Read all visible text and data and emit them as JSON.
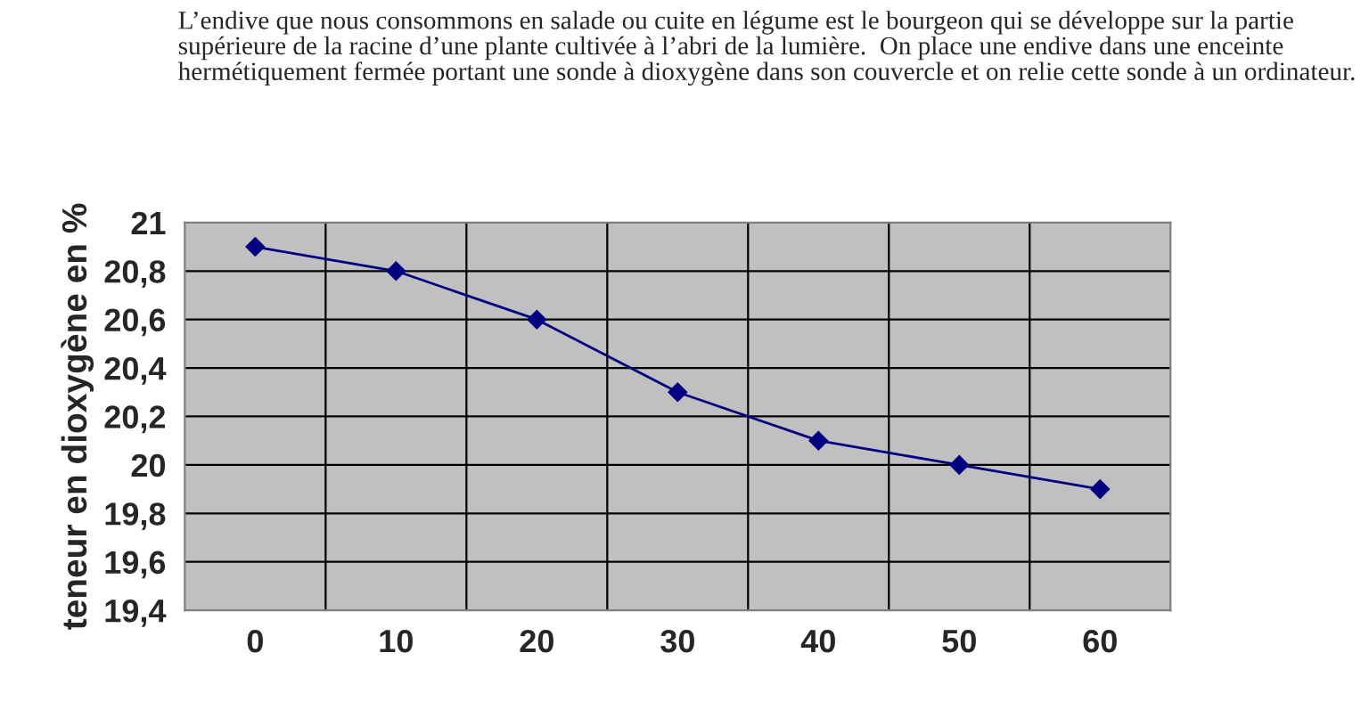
{
  "chart_data": {
    "type": "line",
    "annotations": [
      "L’endive que nous consommons en salade ou cuite en légume est le bourgeon qui se développe sur la partie supérieure de la racine d’une plante cultivée à l’abri de la lumière.  On place une endive dans une enceinte hermétiquement fermée portant une sonde à dioxygène dans son couvercle et on relie cette sonde à un ordinateur."
    ],
    "ylabel": "teneur en dioxygène en %",
    "categories": [
      "0",
      "10",
      "20",
      "30",
      "40",
      "50",
      "60"
    ],
    "series": [
      {
        "color": "#000080",
        "values": [
          20.9,
          20.8,
          20.6,
          20.3,
          20.1,
          20.0,
          19.9
        ]
      }
    ],
    "ylim": [
      19.4,
      21
    ],
    "yticks": [
      {
        "value": 19.4,
        "label": "19,4"
      },
      {
        "value": 19.6,
        "label": "19,6"
      },
      {
        "value": 19.8,
        "label": "19,8"
      },
      20,
      {
        "value": 20.2,
        "label": "20,2"
      },
      {
        "value": 20.4,
        "label": "20,4"
      },
      {
        "value": 20.6,
        "label": "20,6"
      },
      {
        "value": 20.8,
        "label": "20,8"
      },
      21
    ],
    "grid": true,
    "marker": "diamond",
    "line_style": "solid"
  }
}
